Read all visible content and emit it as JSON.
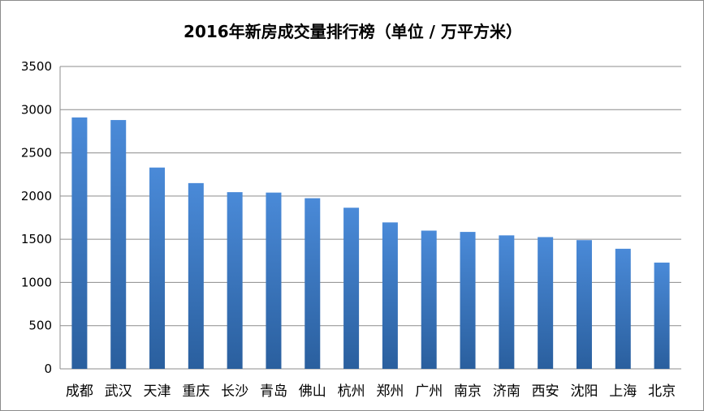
{
  "chart_data": {
    "type": "bar",
    "title": "2016年新房成交量排行榜（单位 / 万平方米）",
    "categories": [
      "成都",
      "武汉",
      "天津",
      "重庆",
      "长沙",
      "青岛",
      "佛山",
      "杭州",
      "郑州",
      "广州",
      "南京",
      "济南",
      "西安",
      "沈阳",
      "上海",
      "北京"
    ],
    "values": [
      2910,
      2880,
      2330,
      2150,
      2045,
      2040,
      1975,
      1865,
      1695,
      1600,
      1585,
      1545,
      1525,
      1490,
      1390,
      1230
    ],
    "ylim": [
      0,
      3500
    ],
    "yticks": [
      0,
      500,
      1000,
      1500,
      2000,
      2500,
      3000,
      3500
    ],
    "grid": true,
    "legend": "none",
    "colors": {
      "bar_top": "#4a8ad8",
      "bar_bottom": "#2a5f9e",
      "grid": "#8c8c8c"
    }
  }
}
